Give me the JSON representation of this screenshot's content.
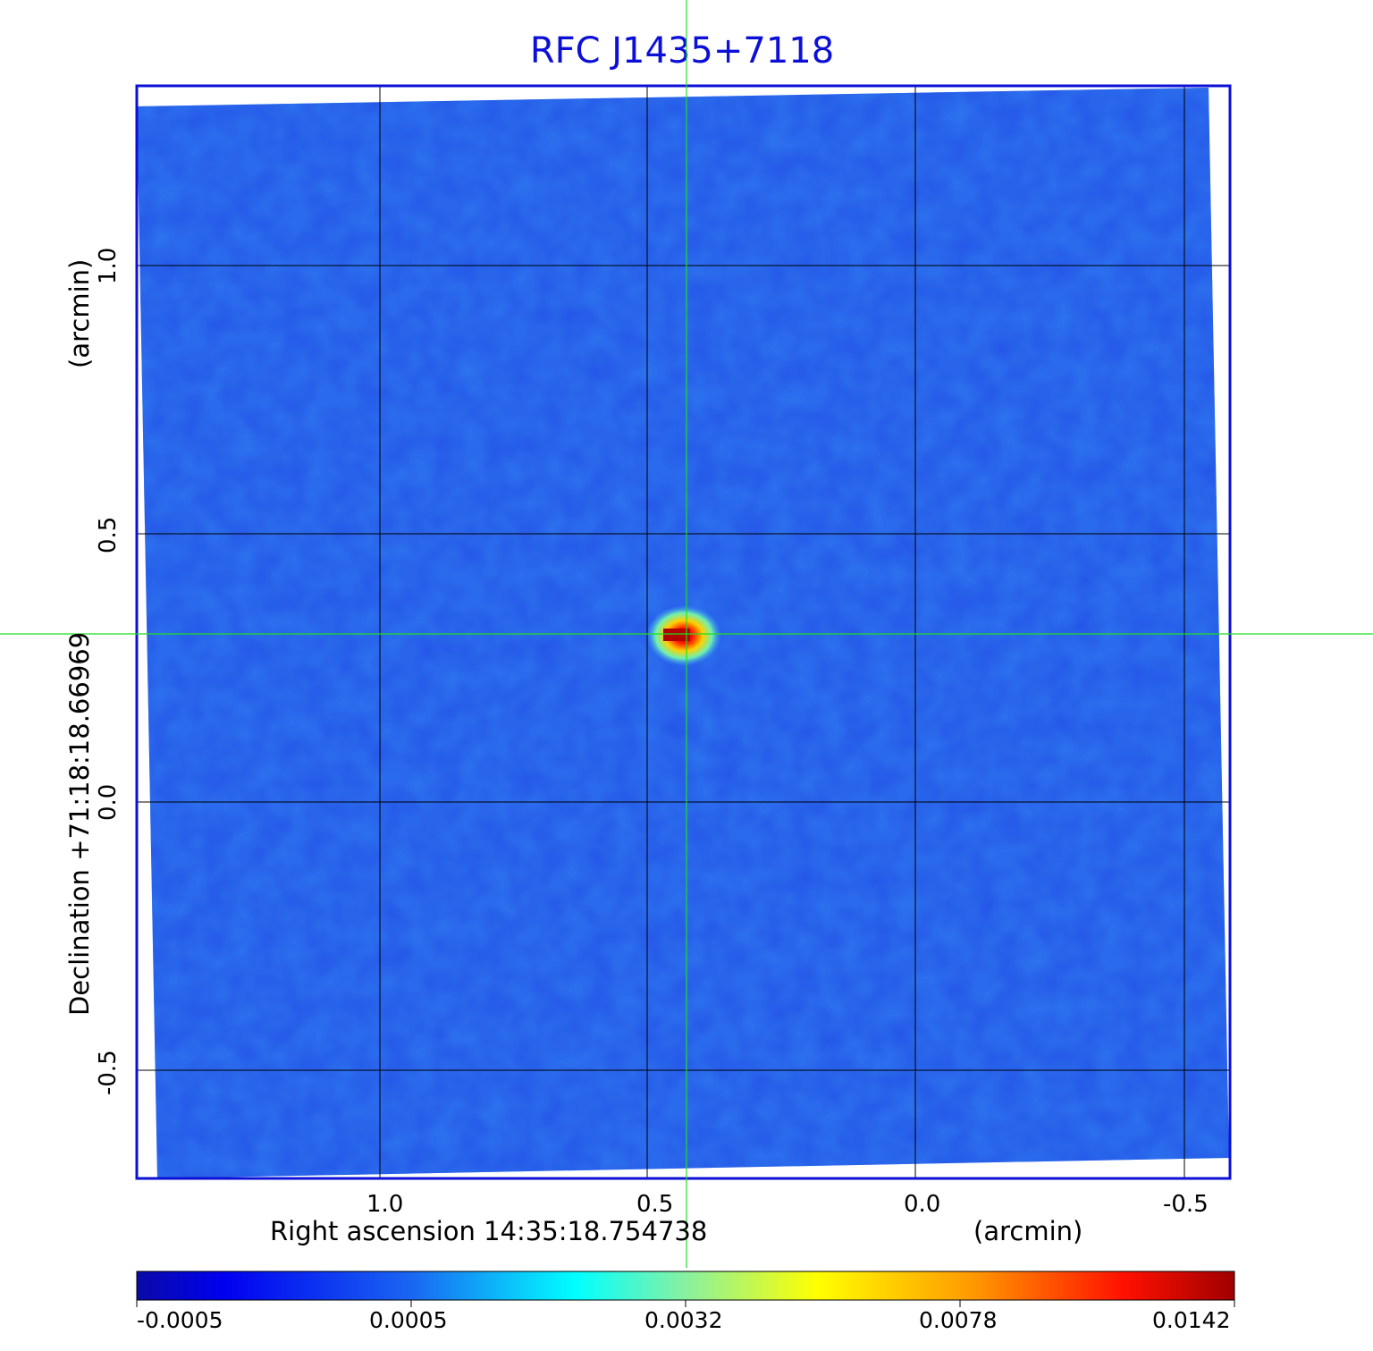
{
  "title": "RFC J1435+7118",
  "x_axis": {
    "label": "Right ascension  14:35:18.754738",
    "unit": "(arcmin)",
    "ticks": [
      "1.0",
      "0.5",
      "0.0",
      "-0.5"
    ]
  },
  "y_axis": {
    "label": "Declination  +71:18:18.66969",
    "unit": "(arcmin)",
    "ticks": [
      "1.0",
      "0.5",
      "0.0",
      "-0.5"
    ]
  },
  "colorbar": {
    "ticks": [
      "-0.0005",
      "0.0005",
      "0.0032",
      "0.0078",
      "0.0142"
    ]
  },
  "colors": {
    "frame": "#0c10d6",
    "grid": "#000000",
    "crosshair": "#22dd22",
    "background_map": "#2560ee"
  },
  "source": {
    "ra_arcmin": 0.43,
    "dec_arcmin": 0.32,
    "peak_value": 0.0142
  }
}
